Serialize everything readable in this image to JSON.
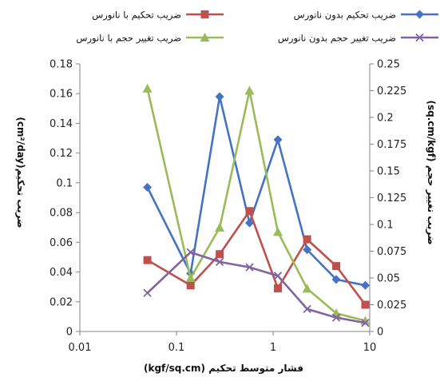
{
  "chart_data": {
    "type": "line",
    "x_scale": "log",
    "xlim": [
      0.01,
      10
    ],
    "x_ticks": [
      "0.01",
      "0.1",
      "1",
      "10"
    ],
    "x": [
      0.05,
      0.14,
      0.28,
      0.57,
      1.12,
      2.25,
      4.5,
      9.0
    ],
    "xlabel": "(kgf/sq.cm) فشار متوسط تحکیم",
    "ylabel_left": "(cm²/day)ضریب تحکیم",
    "ylabel_right": "(sq.cm/kgf) ضریب تغییر حجم",
    "ylim_left": [
      0,
      0.18
    ],
    "ylim_right": [
      0,
      0.25
    ],
    "y_ticks_left": [
      "0",
      "0.02",
      "0.04",
      "0.06",
      "0.08",
      "0.1",
      "0.12",
      "0.14",
      "0.16",
      "0.18"
    ],
    "y_ticks_right": [
      "0",
      "0.025",
      "0.05",
      "0.075",
      "0.1",
      "0.125",
      "0.15",
      "0.175",
      "0.2",
      "0.225",
      "0.25"
    ],
    "grid": false,
    "legend_position": "top",
    "series": [
      {
        "name": "ضریب تحکیم بدون نانورس",
        "axis": "left",
        "color": "#4472C4",
        "marker": "diamond",
        "values": [
          0.097,
          0.039,
          0.158,
          0.073,
          0.129,
          0.055,
          0.035,
          0.031
        ]
      },
      {
        "name": "ضریب تحکیم با نانورس",
        "axis": "left",
        "color": "#C0504D",
        "marker": "square",
        "values": [
          0.048,
          0.031,
          0.052,
          0.081,
          0.029,
          0.062,
          0.044,
          0.018
        ]
      },
      {
        "name": "ضریب تغییر حجم با نانورس",
        "axis": "right",
        "color": "#9BBB59",
        "marker": "triangle",
        "values": [
          0.227,
          0.05,
          0.097,
          0.225,
          0.093,
          0.04,
          0.017,
          0.01
        ]
      },
      {
        "name": "ضریب تغییر حجم بدون نانورس",
        "axis": "right",
        "color": "#8064A2",
        "marker": "x",
        "values": [
          0.036,
          0.074,
          0.065,
          0.06,
          0.052,
          0.021,
          0.013,
          0.008
        ]
      }
    ]
  }
}
